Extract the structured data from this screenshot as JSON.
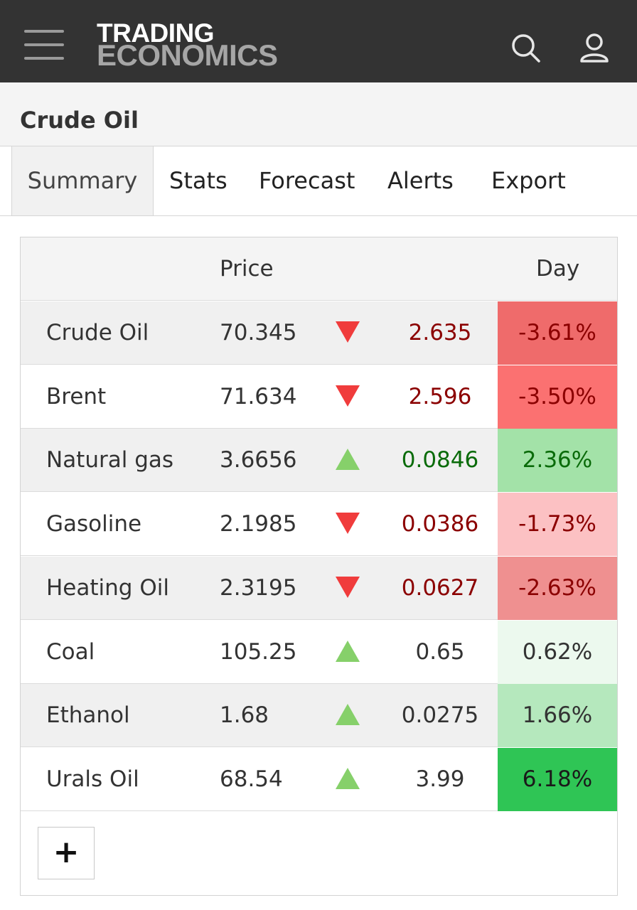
{
  "header": {
    "logo_top": "TRADING",
    "logo_bottom": "ECONOMICS",
    "menu_icon": "hamburger-menu-icon",
    "search_icon": "search-icon",
    "user_icon": "user-icon"
  },
  "page": {
    "title": "Crude Oil"
  },
  "tabs": [
    {
      "label": "Summary",
      "active": true
    },
    {
      "label": "Stats",
      "active": false
    },
    {
      "label": "Forecast",
      "active": false
    },
    {
      "label": "Alerts",
      "active": false
    },
    {
      "label": "Export",
      "active": false
    }
  ],
  "table": {
    "columns": {
      "name": "",
      "price": "Price",
      "day": "Day"
    },
    "rows": [
      {
        "name": "Crude Oil",
        "price": "70.345",
        "direction": "down",
        "change": "2.635",
        "day": "-3.61%",
        "change_color": "#8b0000",
        "day_bg": "#ef6b6b",
        "day_color": "#8b0000"
      },
      {
        "name": "Brent",
        "price": "71.634",
        "direction": "down",
        "change": "2.596",
        "day": "-3.50%",
        "change_color": "#8b0000",
        "day_bg": "#fb7171",
        "day_color": "#8b0000"
      },
      {
        "name": "Natural gas",
        "price": "3.6656",
        "direction": "up",
        "change": "0.0846",
        "day": "2.36%",
        "change_color": "#0a6b0a",
        "day_bg": "#a3e2a8",
        "day_color": "#0a6b0a"
      },
      {
        "name": "Gasoline",
        "price": "2.1985",
        "direction": "down",
        "change": "0.0386",
        "day": "-1.73%",
        "change_color": "#8b0000",
        "day_bg": "#fcc1c3",
        "day_color": "#8b0000"
      },
      {
        "name": "Heating Oil",
        "price": "2.3195",
        "direction": "down",
        "change": "0.0627",
        "day": "-2.63%",
        "change_color": "#8b0000",
        "day_bg": "#ef9090",
        "day_color": "#8b0000"
      },
      {
        "name": "Coal",
        "price": "105.25",
        "direction": "up",
        "change": "0.65",
        "day": "0.62%",
        "change_color": "#333333",
        "day_bg": "#ecf9ee",
        "day_color": "#333333"
      },
      {
        "name": "Ethanol",
        "price": "1.68",
        "direction": "up",
        "change": "0.0275",
        "day": "1.66%",
        "change_color": "#333333",
        "day_bg": "#b5e8bd",
        "day_color": "#333333"
      },
      {
        "name": "Urals Oil",
        "price": "68.54",
        "direction": "up",
        "change": "3.99",
        "day": "6.18%",
        "change_color": "#333333",
        "day_bg": "#2fc555",
        "day_color": "#1a1a1a"
      }
    ],
    "add_label": "+"
  },
  "colors": {
    "arrow_up": "#86d06a",
    "arrow_down": "#f03c3c",
    "header_bg": "#333333"
  }
}
